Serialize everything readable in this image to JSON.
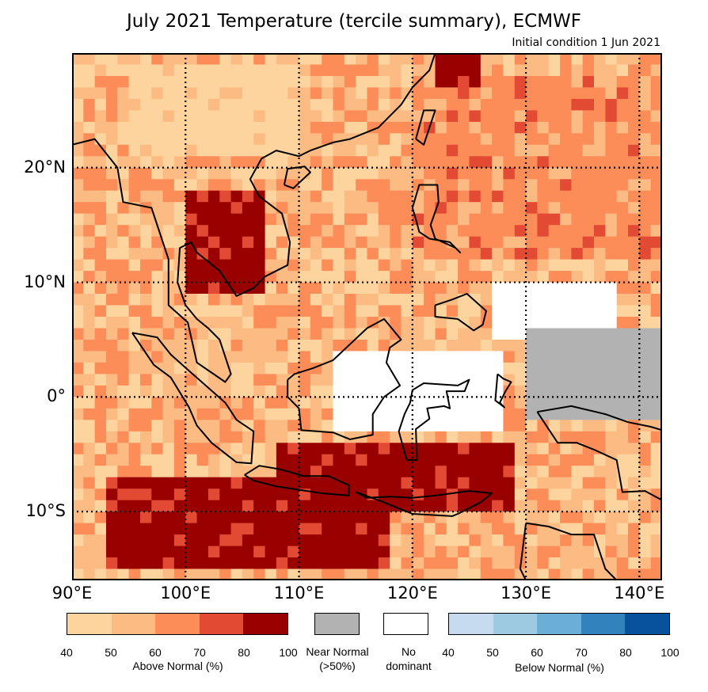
{
  "title": "July 2021 Temperature (tercile summary), ECMWF",
  "subtitle": "Initial condition 1 Jun 2021",
  "map": {
    "lon_range": [
      90,
      142
    ],
    "lat_range": [
      -16,
      30
    ],
    "lat_labels": [
      "20°N",
      "10°N",
      "0°",
      "10°S"
    ],
    "lat_values": [
      20,
      10,
      0,
      -10
    ],
    "lon_labels": [
      "90°E",
      "100°E",
      "110°E",
      "120°E",
      "130°E",
      "140°E"
    ],
    "lon_values": [
      90,
      100,
      110,
      120,
      130,
      140
    ],
    "regions": [
      {
        "category": "above",
        "level": 2,
        "desc": "background"
      },
      {
        "category": "above",
        "level": 1,
        "lon": [
          95,
          110
        ],
        "lat": [
          21,
          29
        ]
      },
      {
        "category": "above",
        "level": 3,
        "lon": [
          120,
          142
        ],
        "lat": [
          12,
          28
        ]
      },
      {
        "category": "above",
        "level": 5,
        "lon": [
          100,
          107
        ],
        "lat": [
          9,
          18
        ]
      },
      {
        "category": "above",
        "level": 5,
        "lon": [
          93,
          118
        ],
        "lat": [
          -15,
          -7
        ]
      },
      {
        "category": "above",
        "level": 5,
        "lon": [
          108,
          129
        ],
        "lat": [
          -10,
          -4
        ]
      },
      {
        "category": "above",
        "level": 5,
        "lon": [
          122,
          126
        ],
        "lat": [
          27,
          30
        ]
      },
      {
        "category": "none",
        "lon": [
          113,
          128
        ],
        "lat": [
          -3,
          4
        ]
      },
      {
        "category": "none",
        "lon": [
          127,
          138
        ],
        "lat": [
          5,
          10
        ]
      },
      {
        "category": "near",
        "lon": [
          130,
          142
        ],
        "lat": [
          -2,
          6
        ]
      }
    ]
  },
  "legend": {
    "above": {
      "caption": "Above Normal (%)",
      "ticks": [
        "40",
        "50",
        "60",
        "70",
        "80",
        "100"
      ],
      "colors": [
        "#fdd49e",
        "#fdbb84",
        "#fc8d59",
        "#e34a33",
        "#990000"
      ]
    },
    "near": {
      "caption_line1": "Near Normal",
      "caption_line2": "(>50%)",
      "color": "#b2b2b2"
    },
    "none": {
      "caption_line1": "No",
      "caption_line2": "dominant",
      "color": "#ffffff"
    },
    "below": {
      "caption": "Below Normal (%)",
      "ticks": [
        "40",
        "50",
        "60",
        "70",
        "80",
        "100"
      ],
      "colors": [
        "#c6dbef",
        "#9ecae1",
        "#6baed6",
        "#3182bd",
        "#08519c"
      ]
    }
  }
}
